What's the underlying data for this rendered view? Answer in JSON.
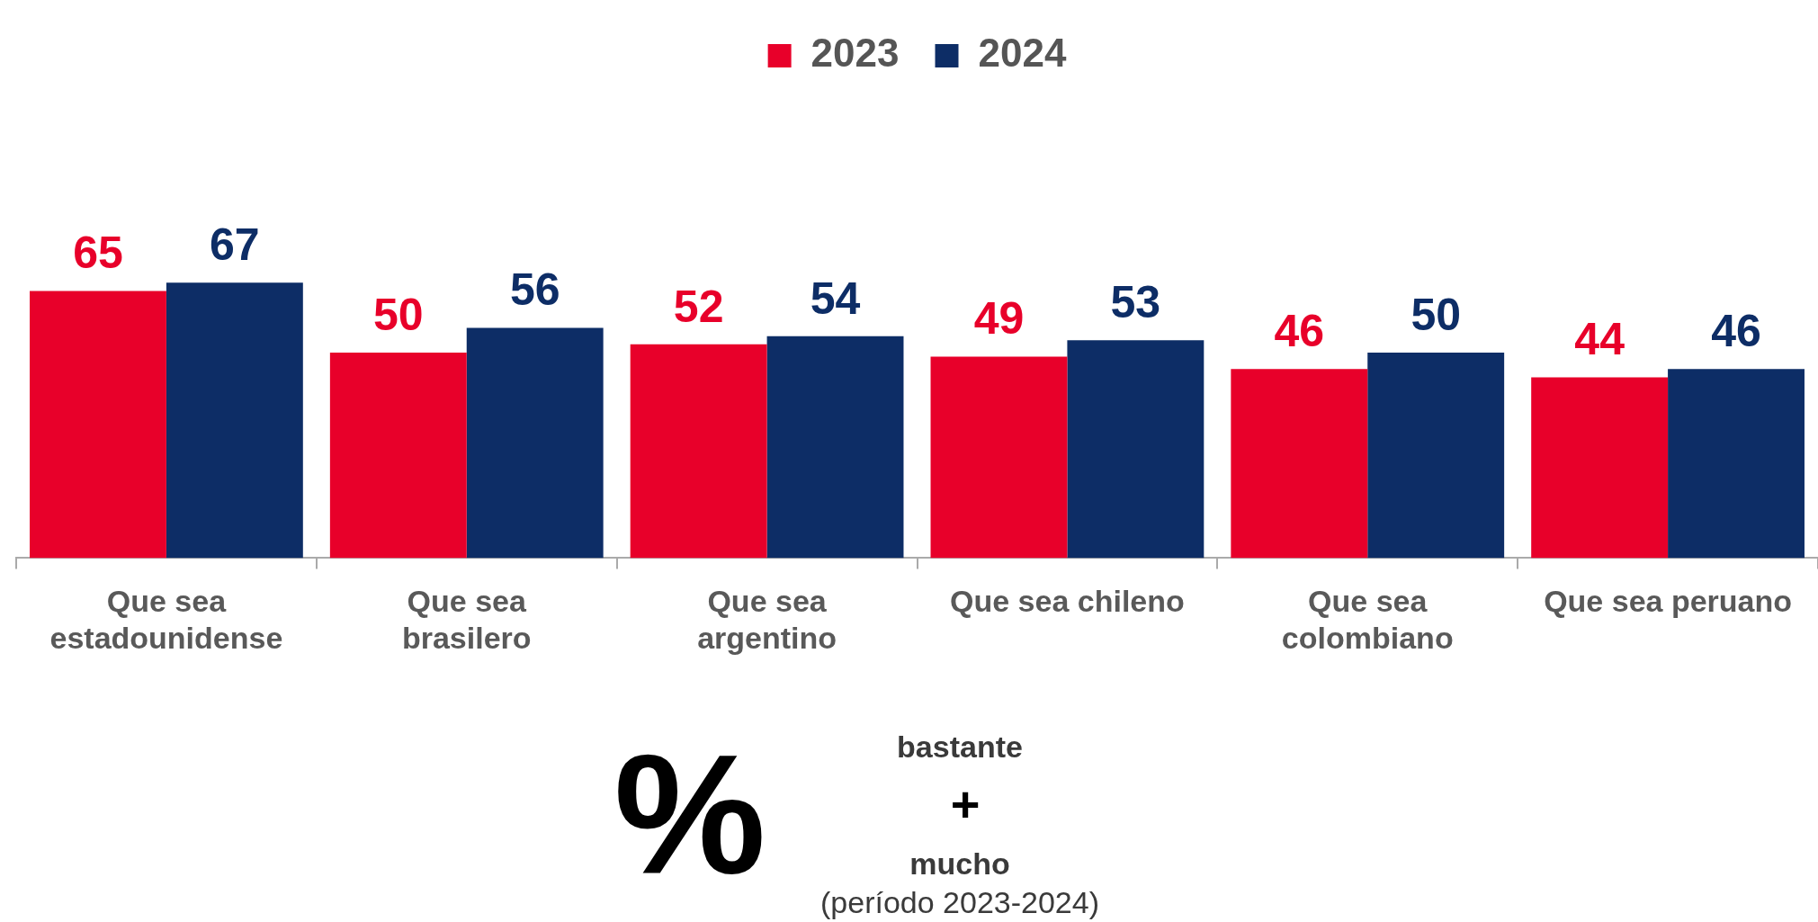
{
  "chart_data": {
    "type": "bar",
    "categories": [
      "Que sea estadounidense",
      "Que sea brasilero",
      "Que sea argentino",
      "Que sea chileno",
      "Que sea colombiano",
      "Que sea peruano"
    ],
    "series": [
      {
        "name": "2023",
        "color": "#e8002a",
        "values": [
          65,
          50,
          52,
          49,
          46,
          44
        ]
      },
      {
        "name": "2024",
        "color": "#0d2d66",
        "values": [
          67,
          56,
          54,
          53,
          50,
          46
        ]
      }
    ],
    "data_labels": true,
    "legend": "top",
    "grid": false,
    "annotations": [
      "%",
      "bastante",
      "+",
      "mucho",
      "(período 2023-2024)"
    ]
  }
}
